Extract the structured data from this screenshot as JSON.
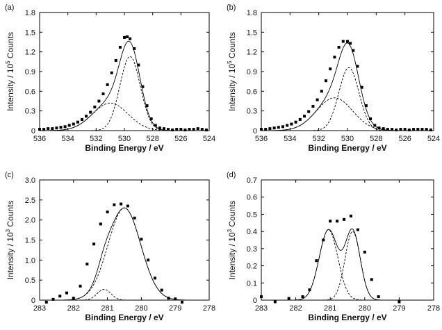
{
  "chart_data": [
    {
      "type": "scatter",
      "panel_label": "(a)",
      "xlabel": "Binding Energy / eV",
      "ylabel_main": "Intensity / 10",
      "ylabel_sup": "5",
      "ylabel_tail": " Counts",
      "xlim": [
        536,
        524
      ],
      "ylim": [
        0,
        1.8
      ],
      "xticks": [
        536,
        534,
        532,
        530,
        528,
        526,
        524
      ],
      "yticks": [
        "0",
        "0.3",
        "0.6",
        "0.9",
        "1.2",
        "1.5",
        "1.8"
      ],
      "grid": false,
      "points": {
        "x": [
          536.0,
          535.7,
          535.4,
          535.1,
          534.8,
          534.5,
          534.2,
          533.9,
          533.6,
          533.3,
          533.0,
          532.7,
          532.4,
          532.1,
          531.8,
          531.5,
          531.2,
          530.9,
          530.6,
          530.3,
          530.0,
          529.8,
          529.6,
          529.3,
          529.0,
          528.7,
          528.4,
          528.1,
          527.8,
          527.5,
          527.2,
          526.9,
          526.6,
          526.3,
          526.0,
          525.7,
          525.4,
          525.1,
          524.8,
          524.5,
          524.2
        ],
        "y": [
          0.02,
          0.02,
          0.03,
          0.03,
          0.04,
          0.05,
          0.06,
          0.08,
          0.1,
          0.13,
          0.17,
          0.22,
          0.28,
          0.36,
          0.45,
          0.56,
          0.7,
          0.88,
          1.07,
          1.27,
          1.42,
          1.43,
          1.4,
          1.25,
          1.0,
          0.67,
          0.38,
          0.18,
          0.08,
          0.04,
          0.03,
          0.02,
          0.01,
          0.02,
          0.02,
          0.01,
          0.02,
          0.02,
          0.03,
          0.02,
          0.01
        ]
      },
      "components": [
        {
          "center": 529.6,
          "height": 1.13,
          "sigma": 0.72
        },
        {
          "center": 531.0,
          "height": 0.42,
          "sigma": 1.25
        }
      ]
    },
    {
      "type": "scatter",
      "panel_label": "(b)",
      "xlabel": "Binding Energy / eV",
      "ylabel_main": "Intensity / 10",
      "ylabel_sup": "5",
      "ylabel_tail": " Counts",
      "xlim": [
        536,
        524
      ],
      "ylim": [
        0,
        1.8
      ],
      "xticks": [
        536,
        534,
        532,
        530,
        528,
        526,
        524
      ],
      "yticks": [
        "0",
        "0.3",
        "0.6",
        "0.9",
        "1.2",
        "1.5",
        "1.8"
      ],
      "grid": false,
      "points": {
        "x": [
          536.0,
          535.7,
          535.4,
          535.1,
          534.8,
          534.5,
          534.2,
          533.9,
          533.6,
          533.3,
          533.0,
          532.7,
          532.4,
          532.1,
          531.8,
          531.5,
          531.2,
          530.9,
          530.6,
          530.3,
          530.0,
          529.8,
          529.6,
          529.3,
          529.0,
          528.7,
          528.4,
          528.1,
          527.8,
          527.5,
          527.2,
          526.9,
          526.6,
          526.3,
          526.0,
          525.7,
          525.4,
          525.1,
          524.8,
          524.5,
          524.2
        ],
        "y": [
          0.02,
          0.02,
          0.03,
          0.04,
          0.05,
          0.06,
          0.08,
          0.1,
          0.13,
          0.17,
          0.22,
          0.29,
          0.37,
          0.47,
          0.6,
          0.76,
          0.94,
          1.12,
          1.27,
          1.36,
          1.36,
          1.33,
          1.22,
          0.98,
          0.66,
          0.38,
          0.18,
          0.08,
          0.04,
          0.03,
          0.02,
          0.02,
          0.01,
          0.02,
          0.02,
          0.01,
          0.02,
          0.02,
          0.02,
          0.02,
          0.01
        ]
      },
      "components": [
        {
          "center": 529.9,
          "height": 0.96,
          "sigma": 0.7
        },
        {
          "center": 530.9,
          "height": 0.5,
          "sigma": 1.25
        }
      ]
    },
    {
      "type": "scatter",
      "panel_label": "(c)",
      "xlabel": "Binding Energy / eV",
      "ylabel_main": "Intensity / 10",
      "ylabel_sup": "3",
      "ylabel_tail": " Counts",
      "xlim": [
        283,
        278
      ],
      "ylim": [
        0,
        3.0
      ],
      "xticks": [
        283,
        282,
        281,
        280,
        279,
        278
      ],
      "yticks": [
        "0",
        "0.5",
        "1.0",
        "1.5",
        "2.0",
        "2.5",
        "3.0"
      ],
      "grid": false,
      "points": {
        "x": [
          282.8,
          282.6,
          282.4,
          282.2,
          282.0,
          281.8,
          281.6,
          281.4,
          281.2,
          281.0,
          280.8,
          280.6,
          280.4,
          280.2,
          280.0,
          279.8,
          279.6,
          279.4,
          279.2,
          279.0,
          278.8
        ],
        "y": [
          -0.05,
          0.02,
          0.1,
          0.18,
          0.05,
          0.35,
          0.9,
          1.4,
          1.9,
          2.2,
          2.38,
          2.4,
          2.35,
          2.05,
          1.52,
          1.0,
          0.55,
          0.25,
          0.05,
          0.03,
          -0.05
        ]
      },
      "components": [
        {
          "center": 280.5,
          "height": 2.3,
          "sigma": 0.48
        },
        {
          "center": 281.1,
          "height": 0.27,
          "sigma": 0.2
        }
      ]
    },
    {
      "type": "scatter",
      "panel_label": "(d)",
      "xlabel": "Binding Energy / eV",
      "ylabel_main": "Intensity / 10",
      "ylabel_sup": "3",
      "ylabel_tail": " Counts",
      "xlim": [
        283,
        278
      ],
      "ylim": [
        0,
        0.7
      ],
      "xticks": [
        283,
        282,
        281,
        280,
        279,
        278
      ],
      "yticks": [
        "0",
        "0.1",
        "0.2",
        "0.3",
        "0.4",
        "0.5",
        "0.6",
        "0.7"
      ],
      "grid": false,
      "points": {
        "x": [
          283.0,
          282.6,
          282.2,
          281.8,
          281.6,
          281.4,
          281.2,
          281.0,
          280.8,
          280.6,
          280.4,
          280.2,
          280.0,
          279.8,
          279.6,
          279.0
        ],
        "y": [
          0.02,
          -0.01,
          0.01,
          0.02,
          0.06,
          0.23,
          0.35,
          0.46,
          0.46,
          0.47,
          0.49,
          0.41,
          0.28,
          0.12,
          0.02,
          -0.01
        ]
      },
      "components": [
        {
          "center": 281.05,
          "height": 0.41,
          "sigma": 0.27
        },
        {
          "center": 280.35,
          "height": 0.4,
          "sigma": 0.22
        }
      ]
    }
  ]
}
